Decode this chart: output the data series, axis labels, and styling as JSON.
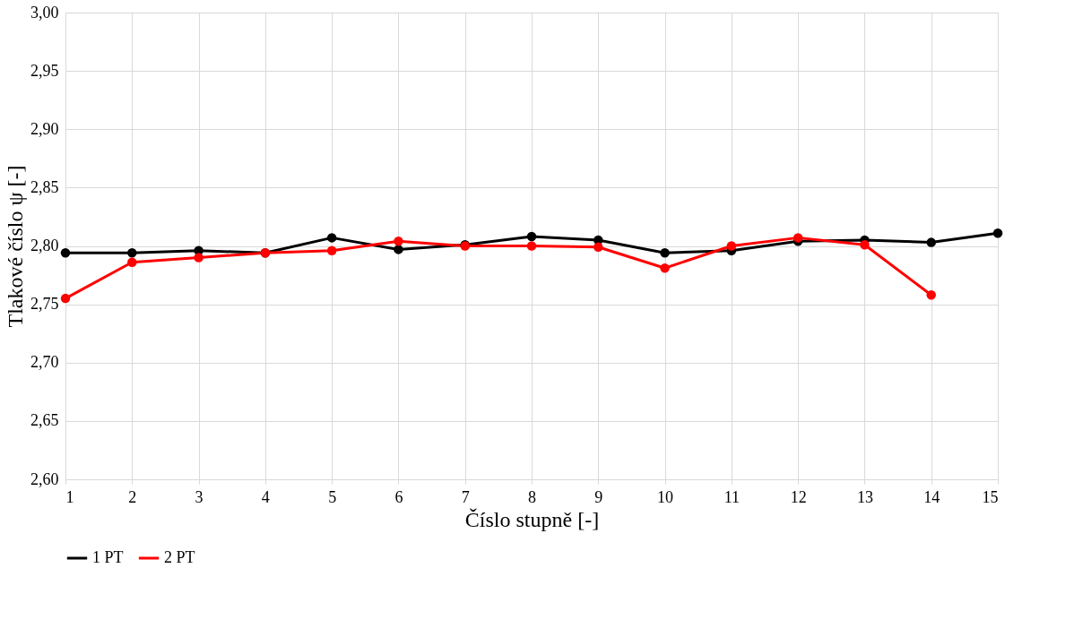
{
  "chart_data": {
    "type": "line",
    "xlabel": "Číslo stupně [-]",
    "ylabel": "Tlakové číslo ψ [-]",
    "x": [
      1,
      2,
      3,
      4,
      5,
      6,
      7,
      8,
      9,
      10,
      11,
      12,
      13,
      14,
      15
    ],
    "xlim": [
      1,
      15
    ],
    "xticks": [
      1,
      2,
      3,
      4,
      5,
      6,
      7,
      8,
      9,
      10,
      11,
      12,
      13,
      14,
      15
    ],
    "ylim": [
      2.6,
      3.0
    ],
    "yticks": [
      {
        "value": 2.6,
        "label": "2,60"
      },
      {
        "value": 2.65,
        "label": "2,65"
      },
      {
        "value": 2.7,
        "label": "2,70"
      },
      {
        "value": 2.75,
        "label": "2,75"
      },
      {
        "value": 2.8,
        "label": "2,80"
      },
      {
        "value": 2.85,
        "label": "2,85"
      },
      {
        "value": 2.9,
        "label": "2,90"
      },
      {
        "value": 2.95,
        "label": "2,95"
      },
      {
        "value": 3.0,
        "label": "3,00"
      }
    ],
    "series": [
      {
        "name": "1 PT",
        "color": "#000000",
        "values": [
          2.794,
          2.794,
          2.796,
          2.794,
          2.807,
          2.797,
          2.801,
          2.808,
          2.805,
          2.794,
          2.796,
          2.804,
          2.805,
          2.803,
          2.811
        ]
      },
      {
        "name": "2 PT",
        "color": "#ff0000",
        "values": [
          2.755,
          2.786,
          2.79,
          2.794,
          2.796,
          2.804,
          2.8,
          2.8,
          2.799,
          2.781,
          2.8,
          2.807,
          2.801,
          2.758,
          null
        ]
      }
    ],
    "grid": true,
    "legend": "bottom",
    "marker": "circle",
    "line_style": "solid"
  }
}
